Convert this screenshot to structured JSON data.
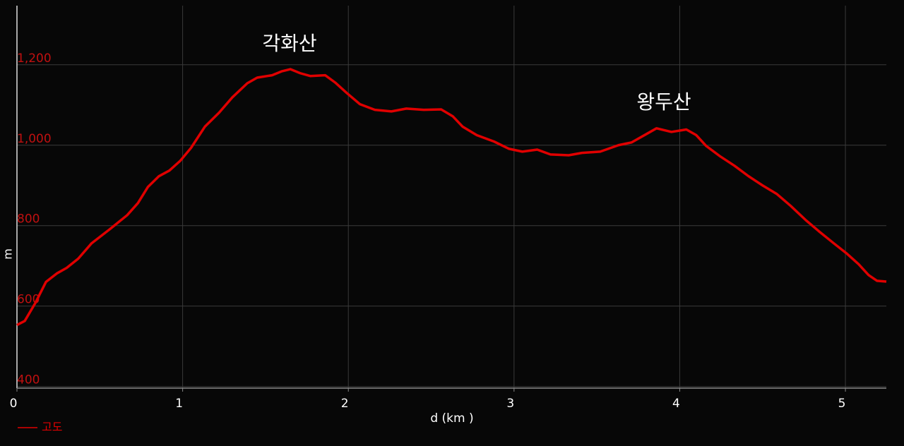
{
  "chart_data": {
    "type": "line",
    "x_label": "d (km )",
    "y_label": "m",
    "x": [
      0,
      0.047,
      0.11,
      0.175,
      0.24,
      0.3,
      0.37,
      0.45,
      0.56,
      0.665,
      0.73,
      0.79,
      0.857,
      0.92,
      0.985,
      1.05,
      1.134,
      1.22,
      1.3,
      1.39,
      1.45,
      1.54,
      1.6,
      1.65,
      1.71,
      1.77,
      1.86,
      1.92,
      1.99,
      2.07,
      2.16,
      2.26,
      2.35,
      2.455,
      2.56,
      2.63,
      2.69,
      2.775,
      2.88,
      2.97,
      3.05,
      3.14,
      3.22,
      3.33,
      3.41,
      3.52,
      3.63,
      3.71,
      3.8,
      3.86,
      3.95,
      4.04,
      4.1,
      4.16,
      4.245,
      4.33,
      4.415,
      4.5,
      4.585,
      4.67,
      4.76,
      4.84,
      4.93,
      5.01,
      5.08,
      5.14,
      5.19,
      5.247
    ],
    "series": [
      {
        "name": "고도",
        "color": "#e00000",
        "values": [
          553,
          563,
          607,
          660,
          681,
          695,
          718,
          756,
          791,
          826,
          856,
          896,
          923,
          937,
          961,
          993,
          1046,
          1081,
          1119,
          1154,
          1168,
          1174,
          1184,
          1189,
          1179,
          1172,
          1174,
          1156,
          1130,
          1102,
          1088,
          1084,
          1091,
          1088,
          1089,
          1072,
          1046,
          1025,
          1009,
          991,
          984,
          989,
          977,
          975,
          981,
          984,
          1000,
          1007,
          1028,
          1042,
          1033,
          1039,
          1025,
          998,
          972,
          949,
          923,
          900,
          879,
          849,
          814,
          786,
          756,
          730,
          704,
          677,
          663,
          661
        ]
      }
    ],
    "annotations": [
      "각화산",
      "왕두산"
    ],
    "xlim": [
      0,
      5.247
    ],
    "ylim": [
      396,
      1347
    ],
    "xticks": [
      0,
      1,
      2,
      3,
      4,
      5
    ],
    "yticks": [
      400,
      600,
      800,
      {
        "value": 1000,
        "label": "1,000"
      },
      {
        "value": 1200,
        "label": "1,200"
      }
    ],
    "grid": true
  }
}
